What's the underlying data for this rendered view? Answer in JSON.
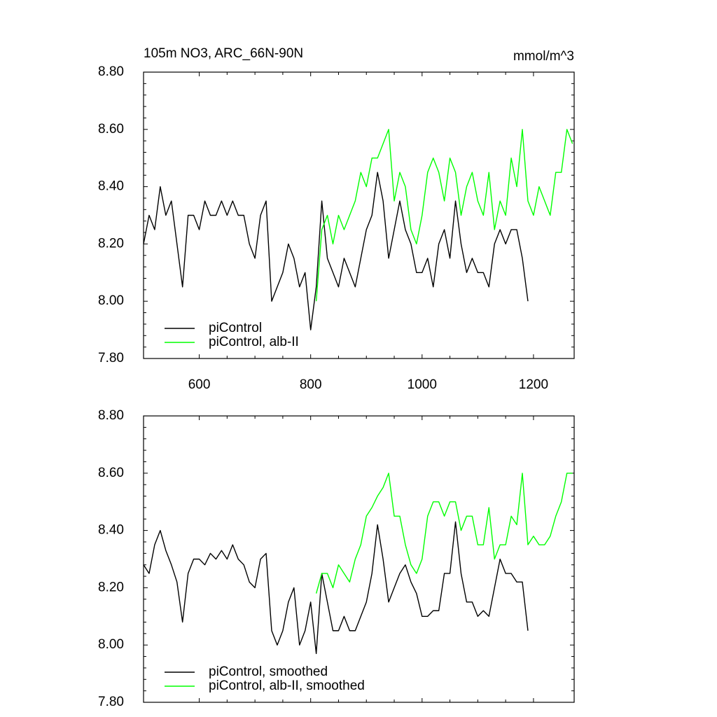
{
  "chart_data": [
    {
      "type": "line",
      "title": "105m NO3, ARC_66N-90N",
      "units_label": "mmol/m^3",
      "x": [
        500,
        510,
        520,
        530,
        540,
        550,
        560,
        570,
        580,
        590,
        600,
        610,
        620,
        630,
        640,
        650,
        660,
        670,
        680,
        690,
        700,
        710,
        720,
        730,
        740,
        750,
        760,
        770,
        780,
        790,
        800,
        810,
        820,
        830,
        840,
        850,
        860,
        870,
        880,
        890,
        900,
        910,
        920,
        930,
        940,
        950,
        960,
        970,
        980,
        990,
        1000,
        1010,
        1020,
        1030,
        1040,
        1050,
        1060,
        1070,
        1080,
        1090,
        1100,
        1110,
        1120,
        1130,
        1140,
        1150,
        1160,
        1170,
        1180,
        1190,
        1200,
        1210,
        1220,
        1230,
        1240,
        1250,
        1260,
        1270
      ],
      "series": [
        {
          "name": "piControl",
          "color": "#000000",
          "values": [
            8.2,
            8.3,
            8.25,
            8.4,
            8.3,
            8.35,
            8.2,
            8.05,
            8.3,
            8.3,
            8.25,
            8.35,
            8.3,
            8.3,
            8.35,
            8.3,
            8.35,
            8.3,
            8.3,
            8.2,
            8.15,
            8.3,
            8.35,
            8.0,
            8.05,
            8.1,
            8.2,
            8.15,
            8.05,
            8.1,
            7.9,
            8.05,
            8.35,
            8.15,
            8.1,
            8.05,
            8.15,
            8.1,
            8.05,
            8.15,
            8.25,
            8.3,
            8.45,
            8.35,
            8.15,
            8.25,
            8.35,
            8.25,
            8.2,
            8.1,
            8.1,
            8.15,
            8.05,
            8.2,
            8.25,
            8.15,
            8.35,
            8.2,
            8.1,
            8.15,
            8.1,
            8.1,
            8.05,
            8.2,
            8.25,
            8.2,
            8.25,
            8.25,
            8.15,
            8.0,
            null,
            null,
            null,
            null,
            null,
            null,
            null,
            null
          ]
        },
        {
          "name": "piControl, alb-II",
          "color": "#00ff00",
          "values": [
            null,
            null,
            null,
            null,
            null,
            null,
            null,
            null,
            null,
            null,
            null,
            null,
            null,
            null,
            null,
            null,
            null,
            null,
            null,
            null,
            null,
            null,
            null,
            null,
            null,
            null,
            null,
            null,
            null,
            null,
            null,
            8.0,
            8.25,
            8.3,
            8.2,
            8.3,
            8.25,
            8.3,
            8.35,
            8.45,
            8.4,
            8.5,
            8.5,
            8.55,
            8.6,
            8.35,
            8.45,
            8.4,
            8.25,
            8.2,
            8.3,
            8.45,
            8.5,
            8.45,
            8.35,
            8.5,
            8.45,
            8.3,
            8.4,
            8.45,
            8.35,
            8.3,
            8.45,
            8.25,
            8.35,
            8.3,
            8.5,
            8.4,
            8.6,
            8.35,
            8.3,
            8.4,
            8.35,
            8.3,
            8.45,
            8.45,
            8.6,
            8.55
          ]
        }
      ],
      "xlim": [
        500,
        1273
      ],
      "ylim": [
        7.8,
        8.8
      ],
      "xticks": [
        600,
        800,
        1000,
        1200
      ],
      "yticks": [
        {
          "value": 7.8,
          "label": "7.80"
        },
        {
          "value": 8.0,
          "label": "8.00"
        },
        {
          "value": 8.2,
          "label": "8.20"
        },
        {
          "value": 8.4,
          "label": "8.40"
        },
        {
          "value": 8.6,
          "label": "8.60"
        },
        {
          "value": 8.8,
          "label": "8.80"
        }
      ],
      "show_xtick_labels": true,
      "legend": "lower left"
    },
    {
      "type": "line",
      "x": [
        500,
        510,
        520,
        530,
        540,
        550,
        560,
        570,
        580,
        590,
        600,
        610,
        620,
        630,
        640,
        650,
        660,
        670,
        680,
        690,
        700,
        710,
        720,
        730,
        740,
        750,
        760,
        770,
        780,
        790,
        800,
        810,
        820,
        830,
        840,
        850,
        860,
        870,
        880,
        890,
        900,
        910,
        920,
        930,
        940,
        950,
        960,
        970,
        980,
        990,
        1000,
        1010,
        1020,
        1030,
        1040,
        1050,
        1060,
        1070,
        1080,
        1090,
        1100,
        1110,
        1120,
        1130,
        1140,
        1150,
        1160,
        1170,
        1180,
        1190,
        1200,
        1210,
        1220,
        1230,
        1240,
        1250,
        1260,
        1270
      ],
      "series": [
        {
          "name": "piControl, smoothed",
          "color": "#000000",
          "values": [
            8.28,
            8.25,
            8.35,
            8.4,
            8.33,
            8.28,
            8.22,
            8.08,
            8.25,
            8.3,
            8.3,
            8.28,
            8.32,
            8.3,
            8.33,
            8.3,
            8.35,
            8.3,
            8.28,
            8.22,
            8.2,
            8.3,
            8.32,
            8.05,
            8.0,
            8.05,
            8.15,
            8.2,
            8.0,
            8.05,
            8.15,
            7.97,
            8.25,
            8.15,
            8.05,
            8.05,
            8.1,
            8.05,
            8.05,
            8.1,
            8.15,
            8.25,
            8.42,
            8.3,
            8.15,
            8.2,
            8.25,
            8.28,
            8.22,
            8.18,
            8.1,
            8.1,
            8.12,
            8.12,
            8.25,
            8.25,
            8.43,
            8.25,
            8.15,
            8.15,
            8.1,
            8.12,
            8.1,
            8.2,
            8.3,
            8.25,
            8.25,
            8.22,
            8.22,
            8.05,
            null,
            null,
            null,
            null,
            null,
            null,
            null,
            null
          ]
        },
        {
          "name": "piControl, alb-II, smoothed",
          "color": "#00ff00",
          "values": [
            null,
            null,
            null,
            null,
            null,
            null,
            null,
            null,
            null,
            null,
            null,
            null,
            null,
            null,
            null,
            null,
            null,
            null,
            null,
            null,
            null,
            null,
            null,
            null,
            null,
            null,
            null,
            null,
            null,
            null,
            null,
            8.18,
            8.25,
            8.25,
            8.2,
            8.28,
            8.25,
            8.22,
            8.3,
            8.35,
            8.45,
            8.48,
            8.52,
            8.55,
            8.6,
            8.45,
            8.45,
            8.35,
            8.28,
            8.25,
            8.3,
            8.45,
            8.5,
            8.5,
            8.45,
            8.5,
            8.5,
            8.4,
            8.45,
            8.45,
            8.35,
            8.35,
            8.48,
            8.3,
            8.35,
            8.35,
            8.45,
            8.42,
            8.6,
            8.35,
            8.38,
            8.35,
            8.35,
            8.38,
            8.45,
            8.5,
            8.6,
            8.6
          ]
        }
      ],
      "xlim": [
        500,
        1273
      ],
      "ylim": [
        7.8,
        8.8
      ],
      "xticks": [
        600,
        800,
        1000,
        1200
      ],
      "yticks": [
        {
          "value": 7.8,
          "label": "7.80"
        },
        {
          "value": 8.0,
          "label": "8.00"
        },
        {
          "value": 8.2,
          "label": "8.20"
        },
        {
          "value": 8.4,
          "label": "8.40"
        },
        {
          "value": 8.6,
          "label": "8.60"
        },
        {
          "value": 8.8,
          "label": "8.80"
        }
      ],
      "show_xtick_labels": false,
      "legend": "lower left"
    }
  ]
}
